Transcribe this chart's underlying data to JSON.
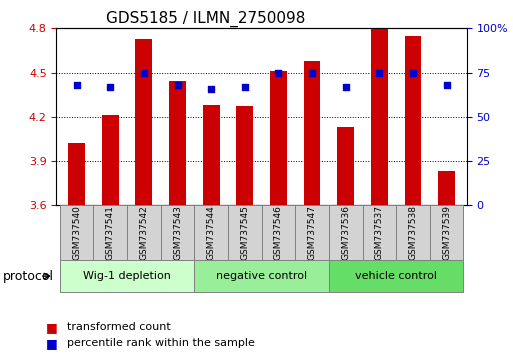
{
  "title": "GDS5185 / ILMN_2750098",
  "samples": [
    "GSM737540",
    "GSM737541",
    "GSM737542",
    "GSM737543",
    "GSM737544",
    "GSM737545",
    "GSM737546",
    "GSM737547",
    "GSM737536",
    "GSM737537",
    "GSM737538",
    "GSM737539"
  ],
  "bar_values": [
    4.02,
    4.21,
    4.73,
    4.44,
    4.28,
    4.27,
    4.51,
    4.58,
    4.13,
    4.8,
    4.75,
    3.83
  ],
  "dot_values": [
    68,
    67,
    75,
    68,
    66,
    67,
    75,
    75,
    67,
    75,
    75,
    68
  ],
  "bar_color": "#cc0000",
  "dot_color": "#0000cc",
  "ylim_left": [
    3.6,
    4.8
  ],
  "ylim_right": [
    0,
    100
  ],
  "yticks_left": [
    3.6,
    3.9,
    4.2,
    4.5,
    4.8
  ],
  "yticks_right": [
    0,
    25,
    50,
    75,
    100
  ],
  "ytick_labels_right": [
    "0",
    "25",
    "50",
    "75",
    "100%"
  ],
  "groups": [
    {
      "label": "Wig-1 depletion",
      "start": 0,
      "end": 4,
      "color": "#ccffcc"
    },
    {
      "label": "negative control",
      "start": 4,
      "end": 8,
      "color": "#99ee99"
    },
    {
      "label": "vehicle control",
      "start": 8,
      "end": 12,
      "color": "#66dd66"
    }
  ],
  "protocol_label": "protocol",
  "legend_bar_label": "transformed count",
  "legend_dot_label": "percentile rank within the sample",
  "bar_width": 0.5,
  "grid_color": "#000000",
  "grid_linestyle": "dotted"
}
